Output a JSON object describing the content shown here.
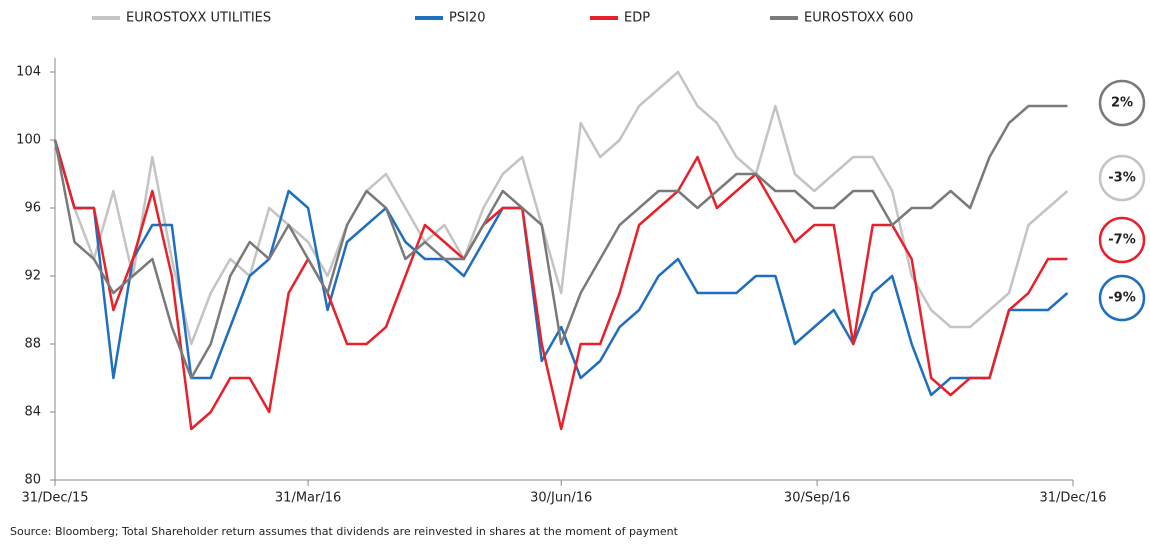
{
  "chart_data": {
    "type": "line",
    "x": [
      0,
      7,
      14,
      21,
      28,
      35,
      42,
      49,
      56,
      63,
      70,
      77,
      84,
      91,
      98,
      105,
      112,
      119,
      126,
      133,
      140,
      147,
      154,
      161,
      168,
      175,
      182,
      189,
      196,
      203,
      210,
      217,
      224,
      231,
      238,
      245,
      252,
      259,
      266,
      273,
      280,
      287,
      294,
      301,
      308,
      315,
      322,
      329,
      336,
      343,
      350,
      357,
      364
    ],
    "series": [
      {
        "name": "EUROSTOXX UTILITIES",
        "color": "#c4c4c4",
        "values": [
          100,
          96,
          93,
          97,
          92,
          99,
          93,
          88,
          91,
          93,
          92,
          96,
          95,
          94,
          92,
          95,
          97,
          98,
          96,
          94,
          95,
          93,
          96,
          98,
          99,
          95,
          91,
          101,
          99,
          100,
          102,
          103,
          104,
          102,
          101,
          99,
          98,
          102,
          98,
          97,
          98,
          99,
          99,
          97,
          92,
          90,
          89,
          89,
          90,
          91,
          95,
          96,
          97
        ]
      },
      {
        "name": "PSI20",
        "color": "#1f6fbf",
        "values": [
          100,
          96,
          96,
          86,
          93,
          95,
          95,
          86,
          86,
          89,
          92,
          93,
          97,
          96,
          90,
          94,
          95,
          96,
          94,
          93,
          93,
          92,
          94,
          96,
          96,
          87,
          89,
          86,
          87,
          89,
          90,
          92,
          93,
          91,
          91,
          91,
          92,
          92,
          88,
          89,
          90,
          88,
          91,
          92,
          88,
          85,
          86,
          86,
          86,
          90,
          90,
          90,
          91
        ]
      },
      {
        "name": "EDP",
        "color": "#e8202a",
        "values": [
          100,
          96,
          96,
          90,
          93,
          97,
          92,
          83,
          84,
          86,
          86,
          84,
          91,
          93,
          91,
          88,
          88,
          89,
          92,
          95,
          94,
          93,
          95,
          96,
          96,
          88,
          83,
          88,
          88,
          91,
          95,
          96,
          97,
          99,
          96,
          97,
          98,
          96,
          94,
          95,
          95,
          88,
          95,
          95,
          93,
          86,
          85,
          86,
          86,
          90,
          91,
          93,
          93
        ]
      },
      {
        "name": "EUROSTOXX 600",
        "color": "#7a7a7a",
        "values": [
          100,
          94,
          93,
          91,
          92,
          93,
          89,
          86,
          88,
          92,
          94,
          93,
          95,
          93,
          91,
          95,
          97,
          96,
          93,
          94,
          93,
          93,
          95,
          97,
          96,
          95,
          88,
          91,
          93,
          95,
          96,
          97,
          97,
          96,
          97,
          98,
          98,
          97,
          97,
          96,
          96,
          97,
          97,
          95,
          96,
          96,
          97,
          96,
          99,
          101,
          102,
          102,
          102
        ]
      }
    ],
    "xlim": [
      0,
      366
    ],
    "xticks": [
      {
        "value": 0,
        "label": "31/Dec/15"
      },
      {
        "value": 91,
        "label": "31/Mar/16"
      },
      {
        "value": 182,
        "label": "30/Jun/16"
      },
      {
        "value": 274,
        "label": "30/Sep/16"
      },
      {
        "value": 366,
        "label": "31/Dec/16"
      }
    ],
    "ylim": [
      80,
      104
    ],
    "yticks": [
      80,
      84,
      88,
      92,
      96,
      100,
      104
    ],
    "annotations": [
      {
        "text": "2%",
        "color": "#7a7a7a"
      },
      {
        "text": "-3%",
        "color": "#c4c4c4"
      },
      {
        "text": "-7%",
        "color": "#e8202a"
      },
      {
        "text": "-9%",
        "color": "#1f6fbf"
      }
    ],
    "source": "Source: Bloomberg; Total Shareholder return assumes that dividends are reinvested in shares at the moment of payment"
  }
}
